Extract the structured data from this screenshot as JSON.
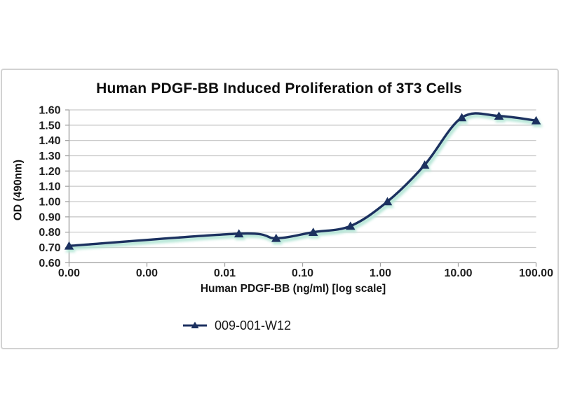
{
  "chart_data": {
    "type": "line",
    "title": "Human PDGF-BB Induced Proliferation of 3T3 Cells",
    "xlabel": "Human PDGF-BB (ng/ml) [log scale]",
    "ylabel": "OD (490nm)",
    "x_scale": "log",
    "x_range": [
      0.0001,
      100
    ],
    "ylim": [
      0.6,
      1.6
    ],
    "y_tick_step": 0.1,
    "x_tick_labels": [
      "0.00",
      "0.00",
      "0.01",
      "0.10",
      "1.00",
      "10.00",
      "100.00"
    ],
    "y_tick_labels": [
      "0.60",
      "0.70",
      "0.80",
      "0.90",
      "1.00",
      "1.10",
      "1.20",
      "1.30",
      "1.40",
      "1.50",
      "1.60"
    ],
    "grid": "horizontal",
    "legend_position": "bottom",
    "series": [
      {
        "name": "009-001-W12",
        "color": "#1c3160",
        "glow_color": "#b4e6d6",
        "marker": "triangle-up",
        "smooth": true,
        "x": [
          0.0001,
          0.0152,
          0.0457,
          0.137,
          0.412,
          1.23,
          3.7,
          11.1,
          33.3,
          100
        ],
        "y": [
          0.71,
          0.79,
          0.76,
          0.8,
          0.84,
          1.0,
          1.24,
          1.55,
          1.56,
          1.53
        ]
      }
    ],
    "axis_color": "#a3a3a3",
    "gridline_color": "#c9c9c9",
    "tick_label_color": "#1f1f1f"
  }
}
